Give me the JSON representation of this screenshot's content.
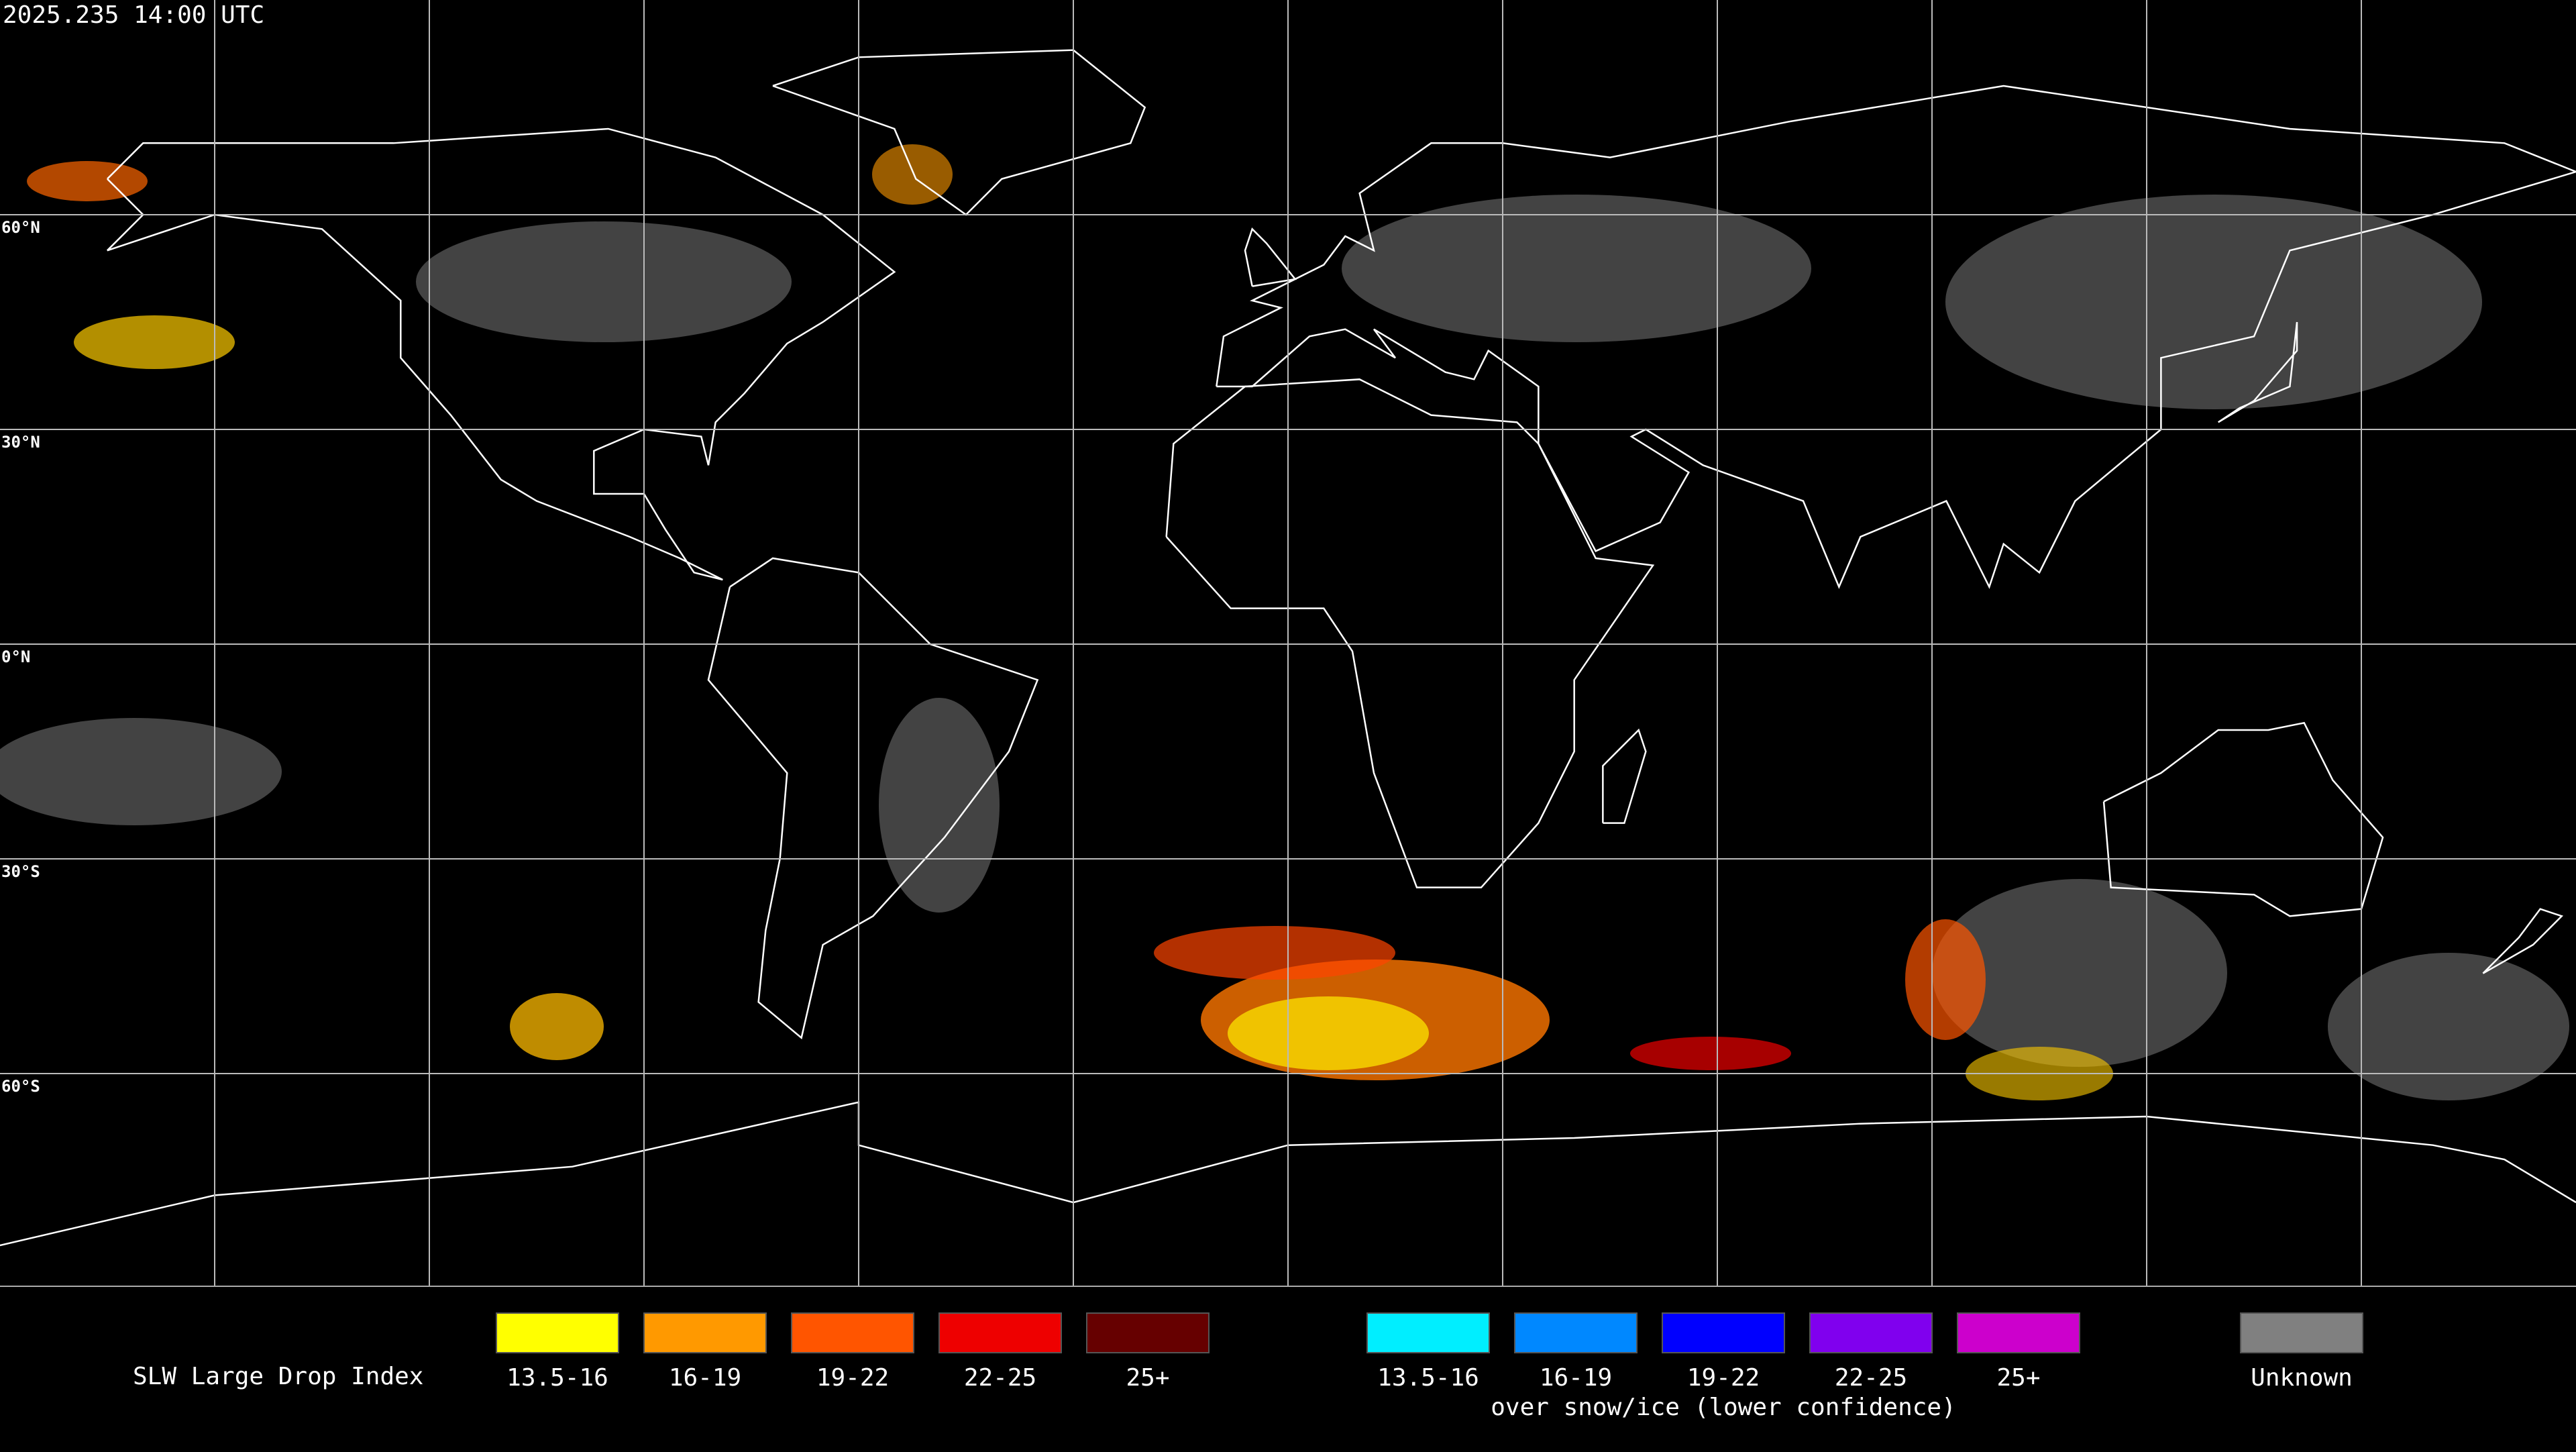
{
  "header": {
    "timestamp": "2025.235 14:00 UTC"
  },
  "map": {
    "latitude_labels": [
      "60°N",
      "30°N",
      "0°N",
      "30°S",
      "60°S"
    ]
  },
  "legend": {
    "title": "SLW Large Drop Index",
    "groups": [
      {
        "items": [
          {
            "label": "13.5-16",
            "color": "#ffff00"
          },
          {
            "label": "16-19",
            "color": "#ff9900"
          },
          {
            "label": "19-22",
            "color": "#ff5500"
          },
          {
            "label": "22-25",
            "color": "#ee0000"
          },
          {
            "label": "25+",
            "color": "#660000"
          }
        ]
      },
      {
        "items": [
          {
            "label": "13.5-16",
            "color": "#00eeff"
          },
          {
            "label": "16-19",
            "color": "#0088ff"
          },
          {
            "label": "19-22",
            "color": "#0000ff"
          },
          {
            "label": "22-25",
            "color": "#8000ee"
          },
          {
            "label": "25+",
            "color": "#cc00cc"
          }
        ],
        "caption": "over snow/ice (lower confidence)"
      },
      {
        "items": [
          {
            "label": "Unknown",
            "color": "#808080"
          }
        ]
      }
    ]
  }
}
